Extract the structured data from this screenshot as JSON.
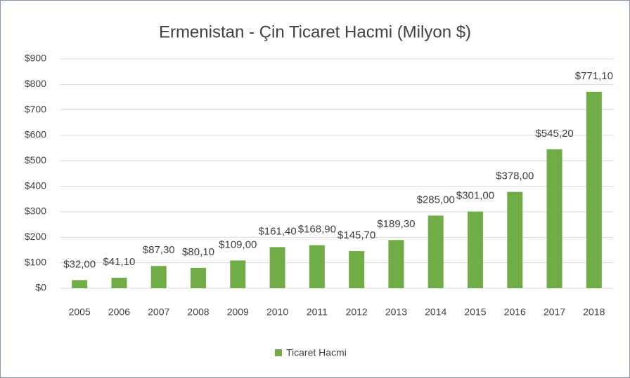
{
  "chart_data": {
    "type": "bar",
    "title": "Ermenistan - Çin Ticaret Hacmi (Milyon $)",
    "categories": [
      "2005",
      "2006",
      "2007",
      "2008",
      "2009",
      "2010",
      "2011",
      "2012",
      "2013",
      "2014",
      "2015",
      "2016",
      "2017",
      "2018"
    ],
    "series": [
      {
        "name": "Ticaret Hacmi",
        "color": "#70ad47",
        "values": [
          32,
          41.1,
          87.3,
          80.1,
          109,
          161.4,
          168.9,
          145.7,
          189.3,
          285,
          301,
          378,
          545.2,
          771.1
        ],
        "value_labels": [
          "$32,00",
          "$41,10",
          "$87,30",
          "$80,10",
          "$109,00",
          "$161,40",
          "$168,90",
          "$145,70",
          "$189,30",
          "$285,00",
          "$301,00",
          "$378,00",
          "$545,20",
          "$771,10"
        ]
      }
    ],
    "ylim": [
      0,
      900
    ],
    "yticks": [
      {
        "value": 0,
        "label": "$0"
      },
      {
        "value": 100,
        "label": "$100"
      },
      {
        "value": 200,
        "label": "$200"
      },
      {
        "value": 300,
        "label": "$300"
      },
      {
        "value": 400,
        "label": "$400"
      },
      {
        "value": 500,
        "label": "$500"
      },
      {
        "value": 600,
        "label": "$600"
      },
      {
        "value": 700,
        "label": "$700"
      },
      {
        "value": 800,
        "label": "$800"
      },
      {
        "value": 900,
        "label": "$900"
      }
    ],
    "grid": true,
    "legend": "bottom"
  }
}
